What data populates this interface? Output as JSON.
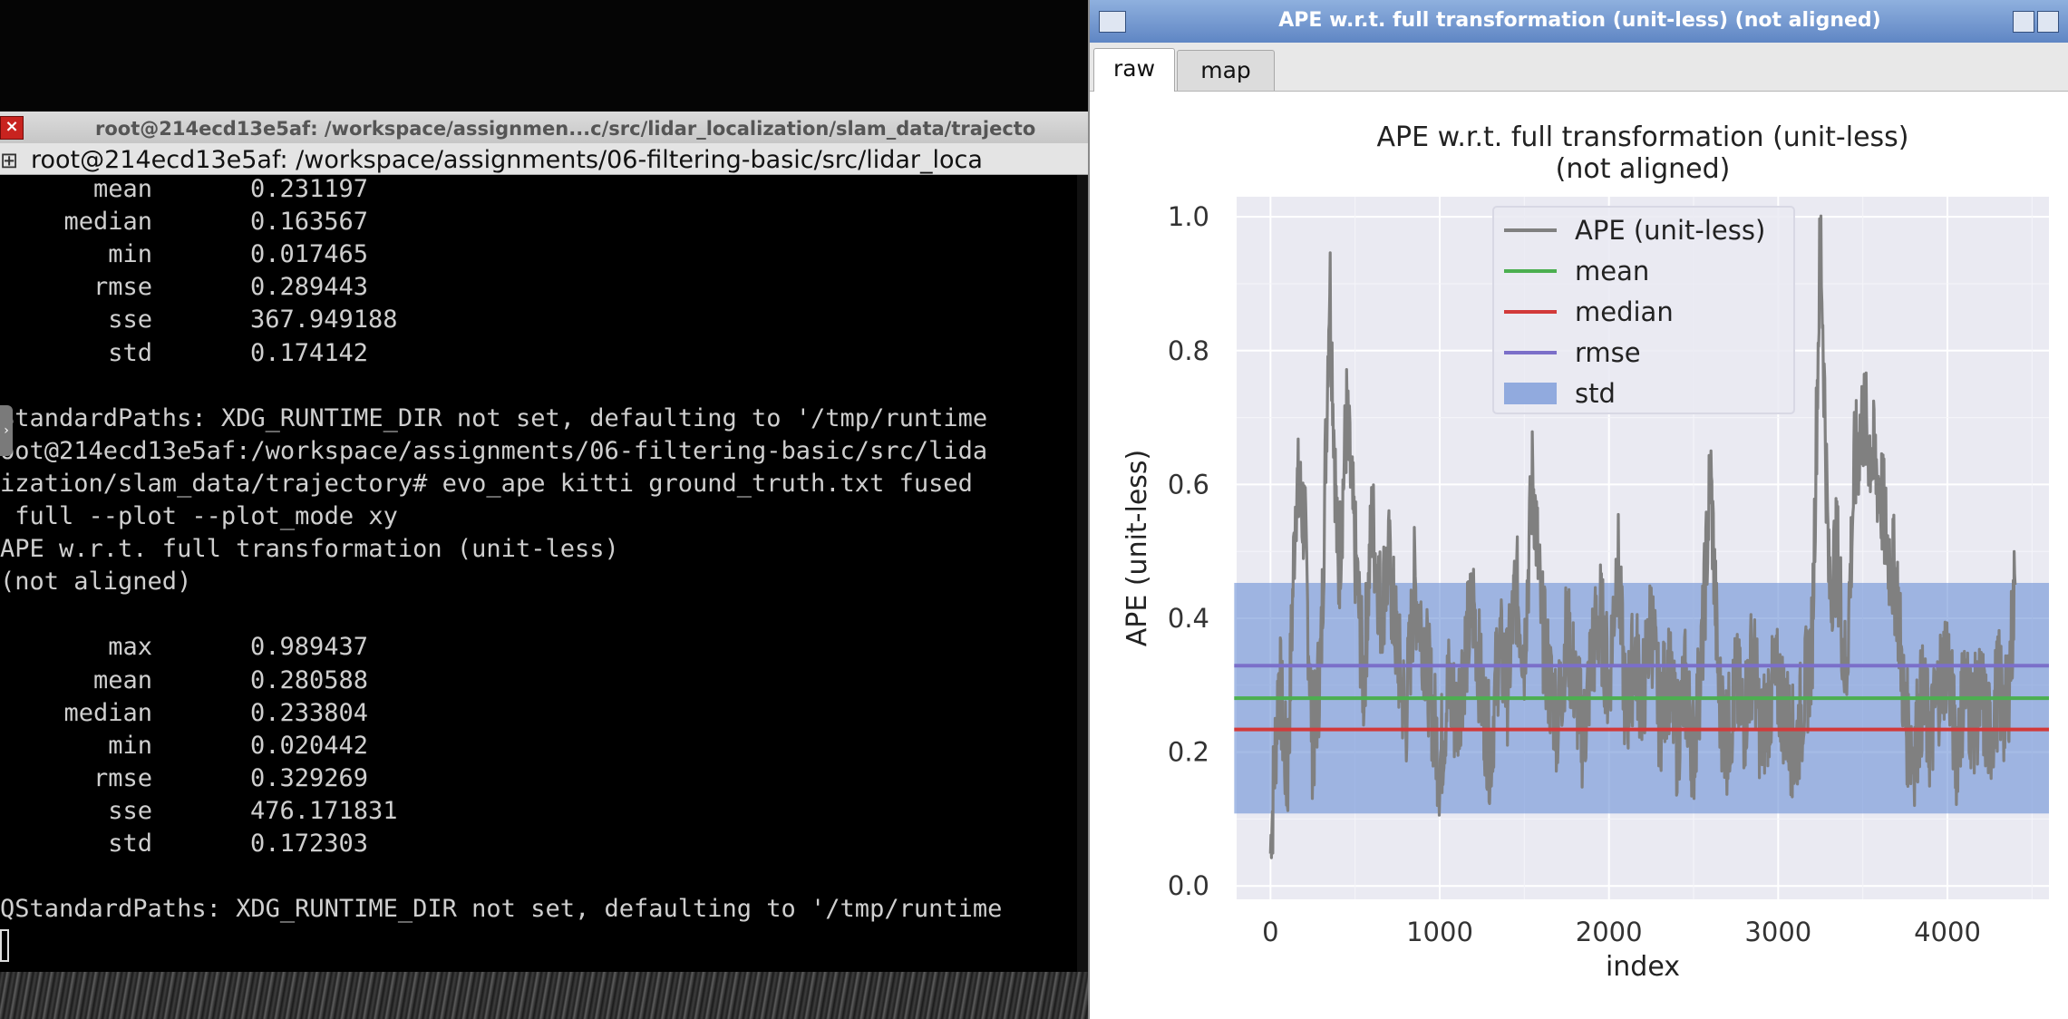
{
  "terminal": {
    "title": "root@214ecd13e5af: /workspace/assignmen...c/src/lidar_localization/slam_data/trajecto",
    "tab_label": "root@214ecd13e5af: /workspace/assignments/06-filtering-basic/src/lidar_loca",
    "tab_icon": "terminal-icon",
    "stats_top": [
      {
        "key": "mean",
        "value": "0.231197"
      },
      {
        "key": "median",
        "value": "0.163567"
      },
      {
        "key": "min",
        "value": "0.017465"
      },
      {
        "key": "rmse",
        "value": "0.289443"
      },
      {
        "key": "sse",
        "value": "367.949188"
      },
      {
        "key": "std",
        "value": "0.174142"
      }
    ],
    "lines": [
      "StandardPaths: XDG_RUNTIME_DIR not set, defaulting to '/tmp/runtime",
      "oot@214ecd13e5af:/workspace/assignments/06-filtering-basic/src/lida",
      "ization/slam_data/trajectory# evo_ape kitti ground_truth.txt fused",
      " full --plot --plot_mode xy",
      "APE w.r.t. full transformation (unit-less)",
      "(not aligned)"
    ],
    "stats_bottom": [
      {
        "key": "max",
        "value": "0.989437"
      },
      {
        "key": "mean",
        "value": "0.280588"
      },
      {
        "key": "median",
        "value": "0.233804"
      },
      {
        "key": "min",
        "value": "0.020442"
      },
      {
        "key": "rmse",
        "value": "0.329269"
      },
      {
        "key": "sse",
        "value": "476.171831"
      },
      {
        "key": "std",
        "value": "0.172303"
      }
    ],
    "last_line": "QStandardPaths: XDG_RUNTIME_DIR not set, defaulting to '/tmp/runtime"
  },
  "plot_window": {
    "title": "APE w.r.t. full transformation (unit-less) (not aligned)",
    "tabs": [
      {
        "label": "raw",
        "active": true
      },
      {
        "label": "map",
        "active": false
      }
    ]
  },
  "chart_data": {
    "type": "line",
    "title": "APE w.r.t. full transformation (unit-less)",
    "subtitle": "(not aligned)",
    "xlabel": "index",
    "ylabel": "APE (unit-less)",
    "xlim": [
      -200,
      4600
    ],
    "ylim": [
      -0.02,
      1.03
    ],
    "xticks": [
      "0",
      "1000",
      "2000",
      "3000",
      "4000"
    ],
    "yticks": [
      "0.0",
      "0.2",
      "0.4",
      "0.6",
      "0.8",
      "1.0"
    ],
    "grid": true,
    "legend_position": "top-center",
    "series": [
      {
        "name": "APE (unit-less)",
        "color": "#808080",
        "x": [
          0,
          50,
          100,
          150,
          200,
          250,
          300,
          350,
          400,
          450,
          500,
          550,
          600,
          650,
          700,
          750,
          800,
          850,
          900,
          950,
          1000,
          1050,
          1100,
          1150,
          1200,
          1250,
          1300,
          1350,
          1400,
          1450,
          1500,
          1550,
          1600,
          1650,
          1700,
          1750,
          1800,
          1850,
          1900,
          1950,
          2000,
          2050,
          2100,
          2150,
          2200,
          2250,
          2300,
          2350,
          2400,
          2450,
          2500,
          2550,
          2600,
          2650,
          2700,
          2750,
          2800,
          2850,
          2900,
          2950,
          3000,
          3050,
          3100,
          3150,
          3200,
          3250,
          3300,
          3350,
          3400,
          3450,
          3500,
          3550,
          3600,
          3650,
          3700,
          3750,
          3800,
          3850,
          3900,
          3950,
          4000,
          4050,
          4100,
          4150,
          4200,
          4250,
          4300,
          4350,
          4400
        ],
        "y": [
          0.05,
          0.32,
          0.15,
          0.6,
          0.55,
          0.2,
          0.35,
          0.92,
          0.45,
          0.7,
          0.5,
          0.3,
          0.55,
          0.42,
          0.48,
          0.35,
          0.25,
          0.45,
          0.38,
          0.28,
          0.18,
          0.3,
          0.25,
          0.35,
          0.42,
          0.28,
          0.2,
          0.36,
          0.3,
          0.45,
          0.35,
          0.62,
          0.4,
          0.3,
          0.25,
          0.38,
          0.3,
          0.22,
          0.35,
          0.4,
          0.3,
          0.5,
          0.25,
          0.35,
          0.28,
          0.4,
          0.25,
          0.32,
          0.22,
          0.3,
          0.2,
          0.35,
          0.62,
          0.28,
          0.22,
          0.3,
          0.25,
          0.35,
          0.22,
          0.28,
          0.3,
          0.25,
          0.2,
          0.28,
          0.35,
          0.99,
          0.45,
          0.5,
          0.3,
          0.62,
          0.7,
          0.65,
          0.6,
          0.5,
          0.45,
          0.25,
          0.2,
          0.28,
          0.22,
          0.3,
          0.35,
          0.2,
          0.3,
          0.25,
          0.28,
          0.22,
          0.3,
          0.25,
          0.45
        ]
      },
      {
        "name": "mean",
        "color": "#4caf50",
        "value": 0.280588
      },
      {
        "name": "median",
        "color": "#d23a3a",
        "value": 0.233804
      },
      {
        "name": "rmse",
        "color": "#7b6fc9",
        "value": 0.329269
      },
      {
        "name": "std",
        "color": "#6b8fd6",
        "band": [
          0.108285,
          0.452891
        ]
      }
    ]
  },
  "colors": {
    "terminal_bg": "#000000",
    "terminal_text": "#cfcfcf",
    "plot_titlebar": "#6b8fca",
    "plot_bg": "#eaeaf2"
  }
}
